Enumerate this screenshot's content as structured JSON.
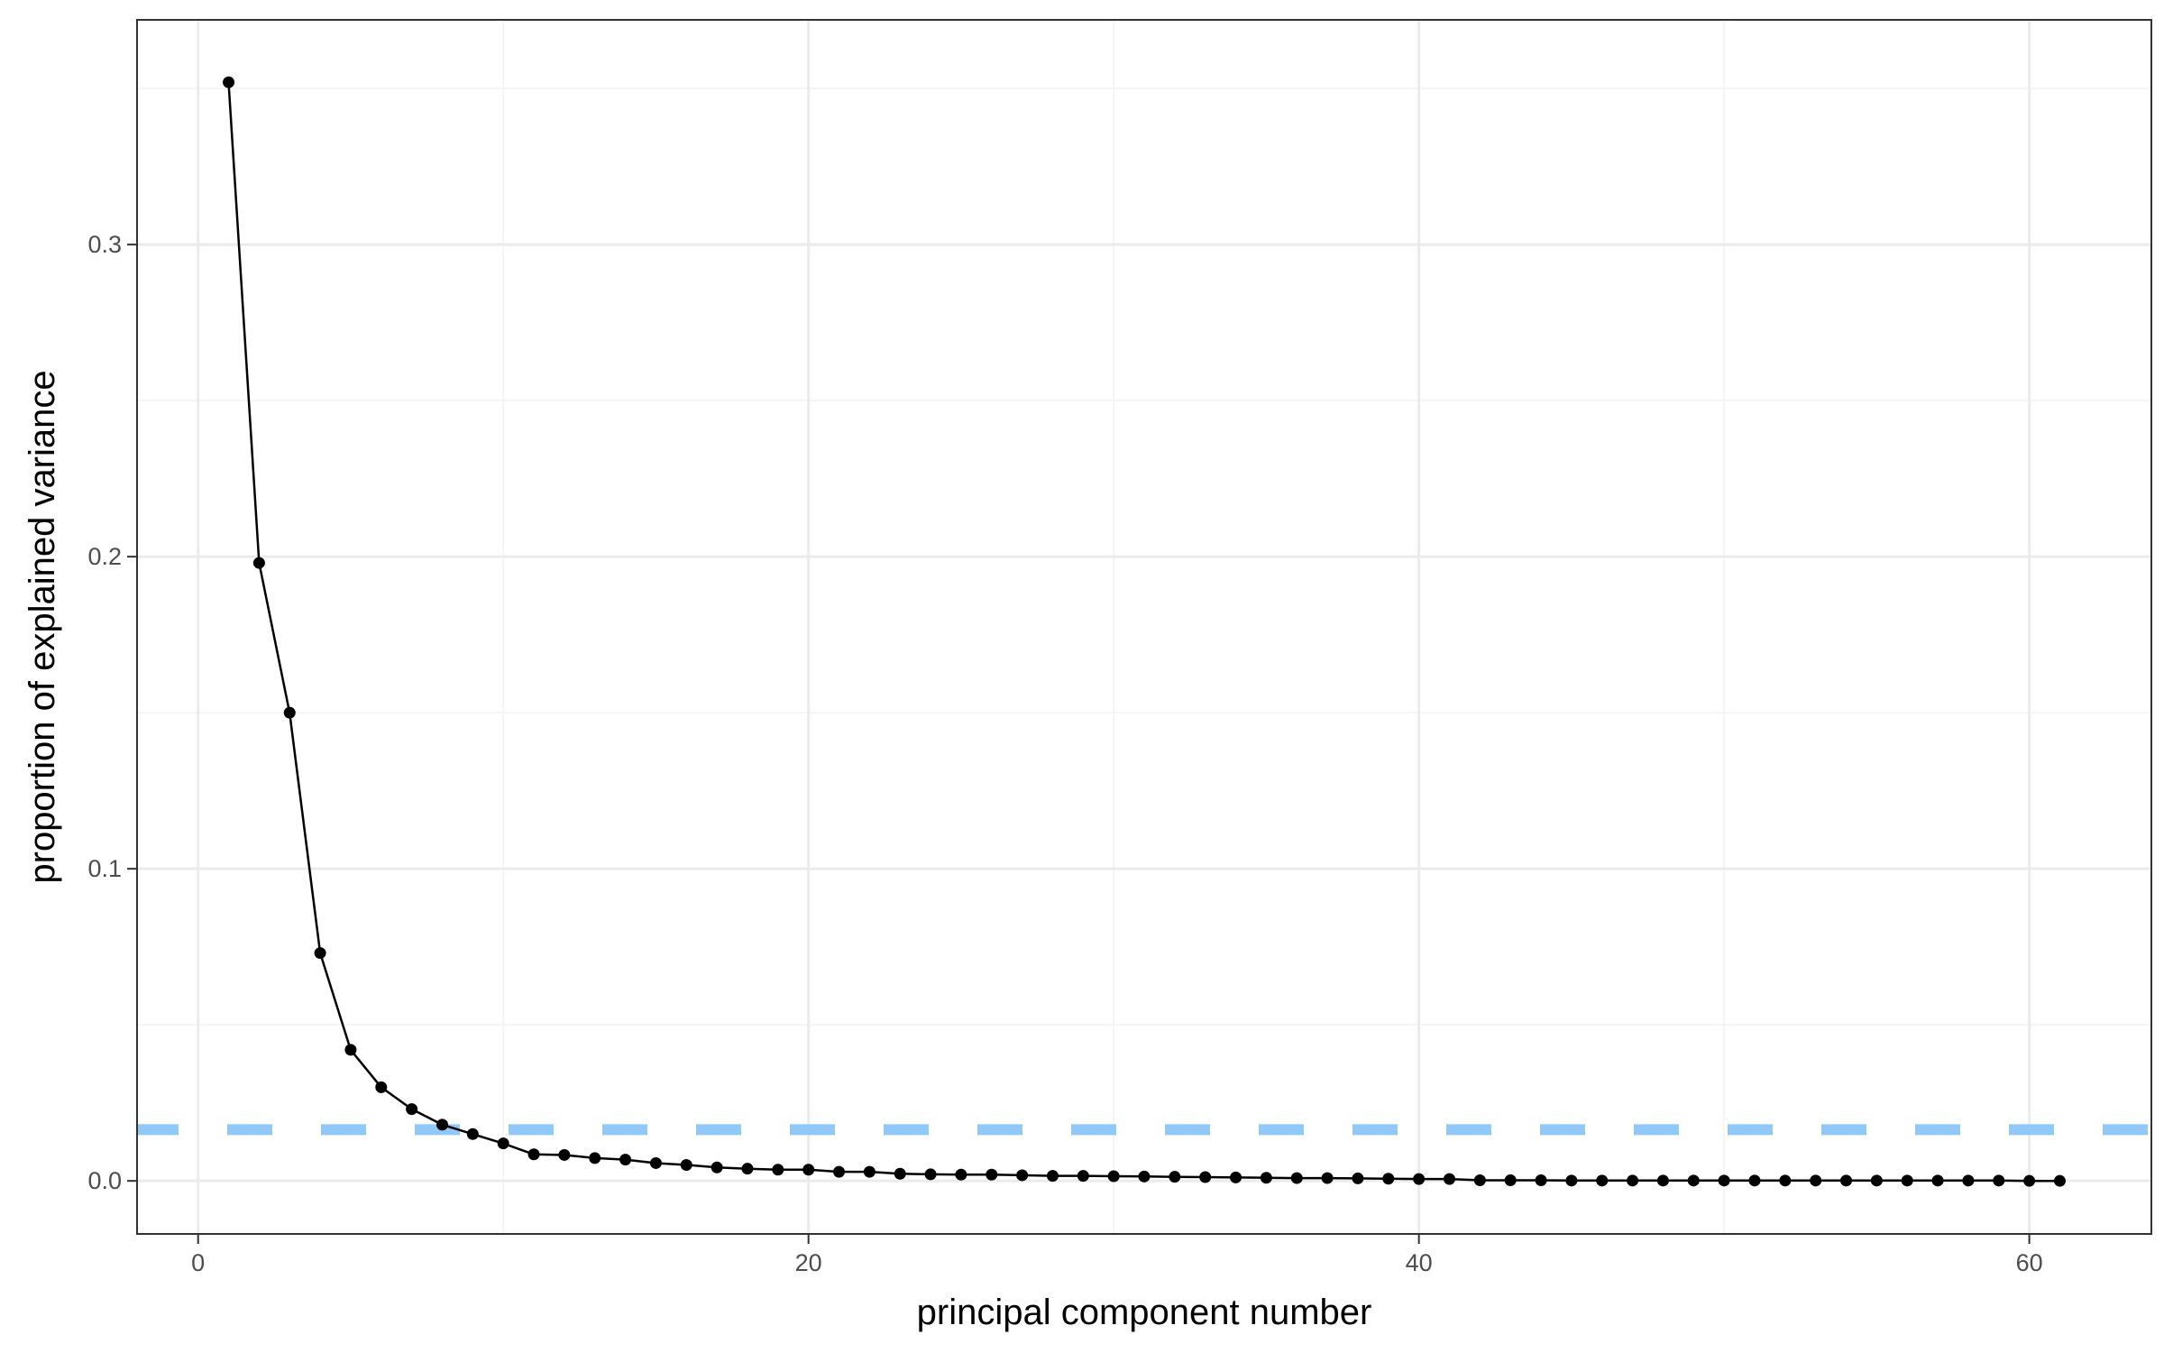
{
  "chart_data": {
    "type": "line",
    "title": "",
    "xlabel": "principal component number",
    "ylabel": "proportion of explained variance",
    "xlim": [
      -2,
      64
    ],
    "ylim": [
      -0.017,
      0.372
    ],
    "x_ticks": [
      0,
      20,
      40,
      60
    ],
    "x_tick_labels": [
      "0",
      "20",
      "40",
      "60"
    ],
    "x_minor_ticks": [
      10,
      30,
      50
    ],
    "y_ticks": [
      0.0,
      0.1,
      0.2,
      0.3
    ],
    "y_tick_labels": [
      "0.0",
      "0.1",
      "0.2",
      "0.3"
    ],
    "y_minor_ticks": [
      0.05,
      0.15,
      0.25,
      0.35
    ],
    "grid": true,
    "legend": "none",
    "series": [
      {
        "color": "#000000",
        "markers": true,
        "x": [
          1,
          2,
          3,
          4,
          5,
          6,
          7,
          8,
          9,
          10,
          11,
          12,
          13,
          14,
          15,
          16,
          17,
          18,
          19,
          20,
          21,
          22,
          23,
          24,
          25,
          26,
          27,
          28,
          29,
          30,
          31,
          32,
          33,
          34,
          35,
          36,
          37,
          38,
          39,
          40,
          41,
          42,
          43,
          44,
          45,
          46,
          47,
          48,
          49,
          50,
          51,
          52,
          53,
          54,
          55,
          56,
          57,
          58,
          59,
          60,
          61
        ],
        "values": [
          0.352,
          0.198,
          0.15,
          0.073,
          0.042,
          0.03,
          0.023,
          0.018,
          0.015,
          0.012,
          0.0085,
          0.0083,
          0.0073,
          0.0068,
          0.0057,
          0.0051,
          0.0043,
          0.0039,
          0.0036,
          0.0036,
          0.0029,
          0.0029,
          0.0023,
          0.0021,
          0.002,
          0.002,
          0.0018,
          0.0016,
          0.0016,
          0.0015,
          0.0014,
          0.0013,
          0.0012,
          0.0011,
          0.001,
          0.0009,
          0.0009,
          0.0008,
          0.0007,
          0.0006,
          0.0006,
          0.0002,
          0.0002,
          0.0002,
          0.0001,
          0.0001,
          0.0001,
          0.0001,
          0.0001,
          0.0001,
          0.0001,
          0.0001,
          0.0001,
          0.0001,
          0.0001,
          0.0001,
          0.0001,
          0.0001,
          0.0001,
          0.0,
          0.0
        ]
      }
    ],
    "reference_line": {
      "orientation": "horizontal",
      "y": 0.0164,
      "style": "dashed",
      "color": "#90c8f8"
    },
    "colors": {
      "background": "#ffffff",
      "grid_major": "#ebebeb",
      "grid_minor": "#f5f5f5",
      "panel_border": "#333333",
      "tick_label": "#4d4d4d",
      "axis_title": "#000000"
    }
  }
}
